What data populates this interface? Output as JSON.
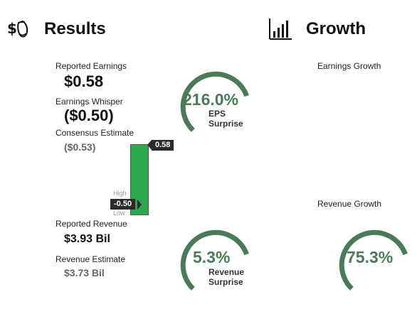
{
  "results": {
    "title": "Results",
    "icon": "money-bag-icon",
    "reported_earnings_label": "Reported Earnings",
    "reported_earnings_value": "$0.58",
    "whisper_label": "Earnings Whisper",
    "whisper_value": "($0.50)",
    "consensus_label": "Consensus Estimate",
    "consensus_value": "($0.53)",
    "reported_revenue_label": "Reported Revenue",
    "reported_revenue_value": "$3.93 Bil",
    "revenue_estimate_label": "Revenue Estimate",
    "revenue_estimate_value": "$3.73 Bil"
  },
  "range_bar": {
    "high_tag": "0.58",
    "low_tag": "-0.50",
    "high_label": "High",
    "low_label": "Low",
    "bar_color": "#2ea84f"
  },
  "eps_gauge": {
    "percent": "216.0%",
    "line1": "EPS",
    "line2": "Surprise"
  },
  "revenue_gauge": {
    "percent": "5.3%",
    "line1": "Revenue",
    "line2": "Surprise"
  },
  "growth": {
    "title": "Growth",
    "icon": "bar-chart-icon",
    "earnings_growth_label": "Earnings Growth",
    "revenue_growth_label": "Revenue Growth",
    "revenue_growth_value": "75.3%"
  },
  "colors": {
    "gauge_arc": "#4a7a58",
    "accent_green": "#2ea84f"
  }
}
